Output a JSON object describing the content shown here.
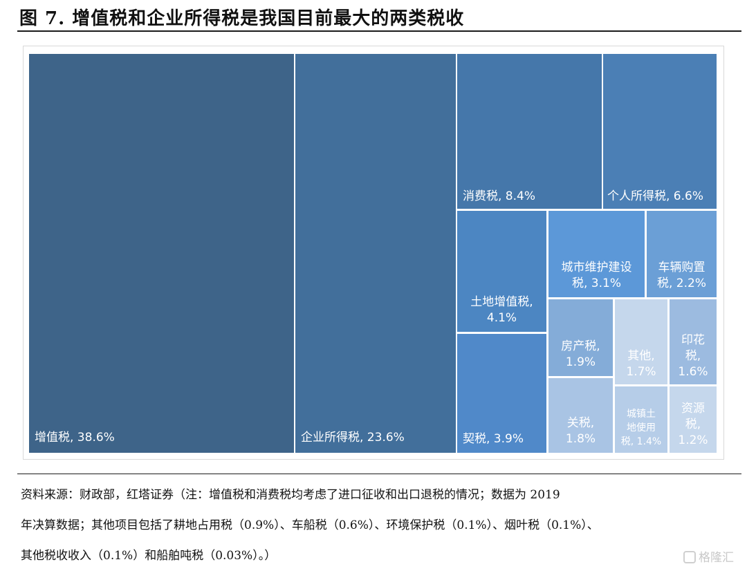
{
  "figure": {
    "title": "图 7. 增值税和企业所得税是我国目前最大的两类税收"
  },
  "chart_data": {
    "type": "treemap",
    "unit": "%",
    "items": [
      {
        "name": "增值税",
        "value": 38.6,
        "label": "增值税, 38.6%",
        "color": "#3e6489"
      },
      {
        "name": "企业所得税",
        "value": 23.6,
        "label": "企业所得税, 23.6%",
        "color": "#426f9b"
      },
      {
        "name": "消费税",
        "value": 8.4,
        "label": "消费税, 8.4%",
        "color": "#4577aa"
      },
      {
        "name": "个人所得税",
        "value": 6.6,
        "label": "个人所得税, 6.6%",
        "color": "#4b7fb5"
      },
      {
        "name": "土地增值税",
        "value": 4.1,
        "label": "土地增值税, 4.1%",
        "color": "#4c86c2"
      },
      {
        "name": "契税",
        "value": 3.9,
        "label": "契税, 3.9%",
        "color": "#5089c9"
      },
      {
        "name": "城市维护建设税",
        "value": 3.1,
        "label": "城市维护建设税, 3.1%",
        "color": "#5c98d8"
      },
      {
        "name": "车辆购置税",
        "value": 2.2,
        "label": "车辆购置税, 2.2%",
        "color": "#6b9fd6"
      },
      {
        "name": "房产税",
        "value": 1.9,
        "label": "房产税, 1.9%",
        "color": "#84acd8"
      },
      {
        "name": "其他",
        "value": 1.7,
        "label": "其他, 1.7%",
        "color": "#c5d7ec"
      },
      {
        "name": "印花税",
        "value": 1.6,
        "label": "印花税, 1.6%",
        "color": "#9cbbe0"
      },
      {
        "name": "关税",
        "value": 1.8,
        "label": "关税, 1.8%",
        "color": "#a9c4e4"
      },
      {
        "name": "城镇土地使用税",
        "value": 1.4,
        "label": "城镇土地使用税, 1.4%",
        "color": "#b6cde8"
      },
      {
        "name": "资源税",
        "value": 1.2,
        "label": "资源税, 1.2%",
        "color": "#c5d7ec"
      }
    ],
    "display_lines": {
      "vat": [
        "增值税, 38.6%"
      ],
      "cit": [
        "企业所得税, 23.6%"
      ],
      "consumption": [
        "消费税, 8.4%"
      ],
      "pit": [
        "个人所得税, 6.6%"
      ],
      "landvat": [
        "土地增值税,",
        "4.1%"
      ],
      "deed": [
        "契税, 3.9%"
      ],
      "urban": [
        "城市维护建设",
        "税, 3.1%"
      ],
      "vehicle": [
        "车辆购置",
        "税, 2.2%"
      ],
      "property": [
        "房产税,",
        "1.9%"
      ],
      "other": [
        "其他,",
        "1.7%"
      ],
      "stamp": [
        "印花",
        "税,",
        "1.6%"
      ],
      "customs": [
        "关税,",
        "1.8%"
      ],
      "landuse": [
        "城镇土",
        "地使用",
        "税, 1.4%"
      ],
      "resource": [
        "资源",
        "税,",
        "1.2%"
      ]
    }
  },
  "source_note": {
    "lines": [
      "资料来源：财政部，红塔证券（注：增值税和消费税均考虑了进口征收和出口退税的情况；数据为 2019",
      "年决算数据；其他项目包括了耕地占用税（0.9%）、车船税（0.6%）、环境保护税（0.1%）、烟叶税（0.1%）、",
      "其他税收收入（0.1%）和船舶吨税（0.03%）。）"
    ]
  },
  "watermark": {
    "text": "格隆汇"
  }
}
